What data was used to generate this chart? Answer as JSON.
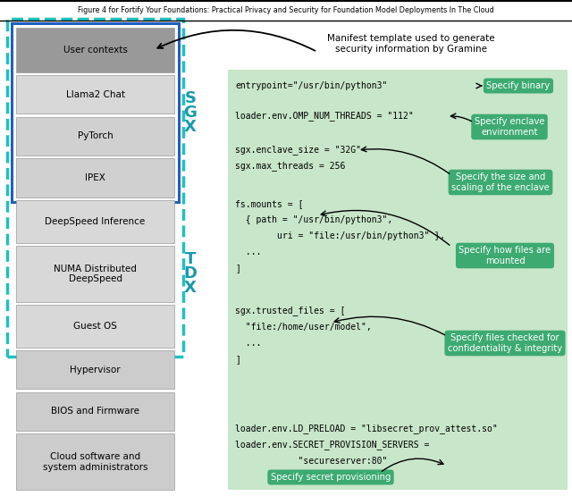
{
  "title": "Figure 4 for Fortify Your Foundations: Practical Privacy and Security for Foundation Model Deployments In The Cloud",
  "bg_color": "#ffffff",
  "right_panel_bg": "#c8e6c9",
  "label_box_color": "#3daa72",
  "label_box_text_color": "#ffffff",
  "left_stack": [
    {
      "text": "User contexts",
      "bg": "#999999"
    },
    {
      "text": "Llama2 Chat",
      "bg": "#d8d8d8"
    },
    {
      "text": "PyTorch",
      "bg": "#d0d0d0"
    },
    {
      "text": "IPEX",
      "bg": "#d0d0d0"
    },
    {
      "text": "DeepSpeed Inference",
      "bg": "#d8d8d8"
    },
    {
      "text": "NUMA Distributed\nDeepSpeed",
      "bg": "#d8d8d8"
    },
    {
      "text": "Guest OS",
      "bg": "#d8d8d8"
    },
    {
      "text": "Hypervisor",
      "bg": "#cccccc"
    },
    {
      "text": "BIOS and Firmware",
      "bg": "#cccccc"
    },
    {
      "text": "Cloud software and\nsystem administrators",
      "bg": "#cccccc"
    }
  ],
  "sgx_color": "#1a9aaa",
  "dashed_outer_color": "#20c0c0",
  "solid_inner_color": "#2060c0"
}
